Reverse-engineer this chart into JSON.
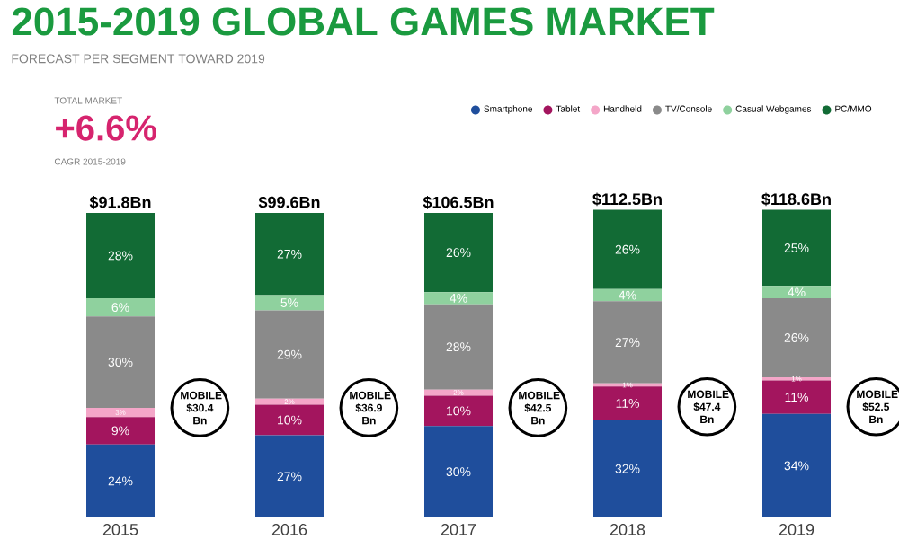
{
  "chart_data": {
    "type": "bar",
    "stacked": true,
    "title": "2015-2019 GLOBAL GAMES MARKET",
    "subtitle": "FORECAST PER SEGMENT TOWARD 2019",
    "categories": [
      "2015",
      "2016",
      "2017",
      "2018",
      "2019"
    ],
    "series": [
      {
        "name": "Smartphone",
        "color": "#1f4e9c",
        "values": [
          24,
          27,
          30,
          32,
          34
        ],
        "value_labels": [
          "24%",
          "27%",
          "30%",
          "32%",
          "34%"
        ]
      },
      {
        "name": "Tablet",
        "color": "#a3155e",
        "values": [
          9,
          10,
          10,
          11,
          11
        ],
        "value_labels": [
          "9%",
          "10%",
          "10%",
          "11%",
          "11%"
        ]
      },
      {
        "name": "Handheld",
        "color": "#f4a6c8",
        "values": [
          3,
          2,
          2,
          1,
          1
        ],
        "value_labels": [
          "3%",
          "2%",
          "2%",
          "1%",
          "1%"
        ]
      },
      {
        "name": "TV/Console",
        "color": "#8a8a8a",
        "values": [
          30,
          29,
          28,
          27,
          26
        ],
        "value_labels": [
          "30%",
          "29%",
          "28%",
          "27%",
          "26%"
        ]
      },
      {
        "name": "Casual Webgames",
        "color": "#8fd19e",
        "values": [
          6,
          5,
          4,
          4,
          4
        ],
        "value_labels": [
          "6%",
          "5%",
          "4%",
          "4%",
          "4%"
        ]
      },
      {
        "name": "PC/MMO",
        "color": "#126b35",
        "values": [
          28,
          27,
          26,
          26,
          25
        ],
        "value_labels": [
          "28%",
          "27%",
          "26%",
          "26%",
          "25%"
        ]
      }
    ],
    "legend": "top right",
    "tick_labels": "x",
    "annotations": [
      "TOTAL MARKET",
      "+6.6%",
      "CAGR 2015-2019",
      "MOBILE $30.4 Bn",
      "MOBILE $36.9 Bn",
      "MOBILE $42.5 Bn",
      "MOBILE $47.4 Bn",
      "MOBILE $52.5 Bn",
      {
        "text": "$91.8Bn",
        "x": "2015",
        "y": 100
      },
      {
        "text": "$99.6Bn",
        "x": "2016",
        "y": 100
      },
      {
        "text": "$106.5Bn",
        "x": "2017",
        "y": 100
      },
      {
        "text": "$112.5Bn",
        "x": "2018",
        "y": 101
      },
      {
        "text": "$118.6Bn",
        "x": "2019",
        "y": 101
      }
    ]
  }
}
